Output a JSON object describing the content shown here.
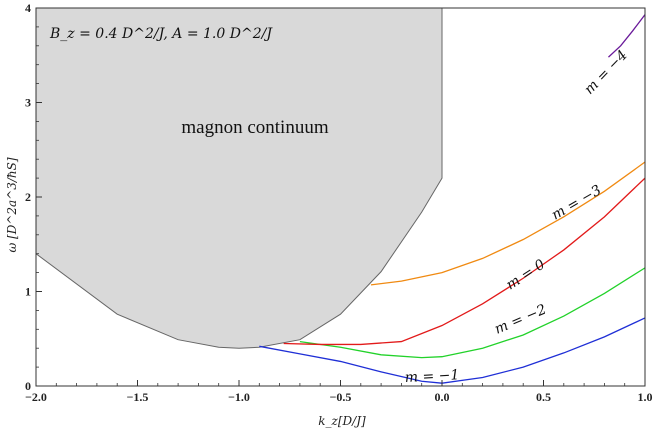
{
  "chart_data": {
    "type": "line",
    "annotation": "B_z = 0.4 D^2/J,   A = 1.0 D^2/J",
    "xlabel": "k_z[D/J]",
    "ylabel": "ω [D^2a^3/ħS]",
    "xlim": [
      -2.0,
      1.0
    ],
    "ylim": [
      0,
      4
    ],
    "xticks": [
      -2.0,
      -1.5,
      -1.0,
      -0.5,
      0.0,
      0.5,
      1.0
    ],
    "xtick_labels": [
      "−2.0",
      "−1.5",
      "−1.0",
      "−0.5",
      "0.0",
      "0.5",
      "1.0"
    ],
    "yticks": [
      0,
      1,
      2,
      3,
      4
    ],
    "ytick_labels": [
      "0",
      "1",
      "2",
      "3",
      "4"
    ],
    "region": {
      "label": "magnon continuum",
      "color": "#d9d9d9",
      "boundary": {
        "x": [
          -2.0,
          -1.6,
          -1.3,
          -1.1,
          -1.0,
          -0.9,
          -0.7,
          -0.5,
          -0.3,
          -0.1,
          0.0
        ],
        "y": [
          1.4,
          0.76,
          0.49,
          0.41,
          0.4,
          0.41,
          0.49,
          0.76,
          1.21,
          1.84,
          2.2
        ]
      }
    },
    "series": [
      {
        "name": "m = −1",
        "color": "#1f2fd6",
        "x": [
          -0.9,
          -0.7,
          -0.5,
          -0.3,
          -0.1,
          0.0,
          0.2,
          0.4,
          0.6,
          0.8,
          1.0
        ],
        "y": [
          0.42,
          0.34,
          0.26,
          0.15,
          0.05,
          0.03,
          0.09,
          0.2,
          0.35,
          0.52,
          0.72
        ]
      },
      {
        "name": "m = −2",
        "color": "#22d22a",
        "x": [
          -0.7,
          -0.5,
          -0.3,
          -0.1,
          0.0,
          0.2,
          0.4,
          0.6,
          0.8,
          1.0
        ],
        "y": [
          0.47,
          0.41,
          0.33,
          0.3,
          0.31,
          0.4,
          0.54,
          0.74,
          0.98,
          1.25
        ]
      },
      {
        "name": "m = 0",
        "color": "#e21a1a",
        "x": [
          -0.78,
          -0.6,
          -0.4,
          -0.2,
          0.0,
          0.2,
          0.4,
          0.6,
          0.8,
          1.0
        ],
        "y": [
          0.45,
          0.44,
          0.44,
          0.47,
          0.64,
          0.87,
          1.14,
          1.44,
          1.79,
          2.2
        ]
      },
      {
        "name": "m = −3",
        "color": "#f08a12",
        "x": [
          -0.35,
          -0.2,
          0.0,
          0.2,
          0.4,
          0.6,
          0.8,
          1.0
        ],
        "y": [
          1.07,
          1.11,
          1.2,
          1.35,
          1.55,
          1.79,
          2.06,
          2.37
        ]
      },
      {
        "name": "m = −4",
        "color": "#6a1a9a",
        "x": [
          0.82,
          0.88,
          0.94,
          1.0
        ],
        "y": [
          3.48,
          3.6,
          3.76,
          3.93
        ]
      }
    ]
  }
}
